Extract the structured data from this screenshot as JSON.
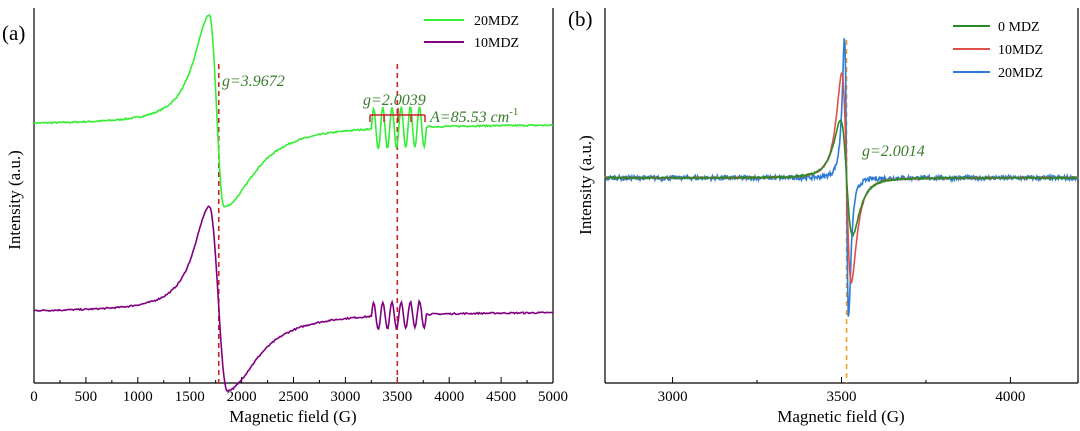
{
  "chart_data": [
    {
      "panel": "(a)",
      "type": "line",
      "xlabel": "Magnetic field (G)",
      "ylabel": "Intensity (a.u.)",
      "xlim": [
        0,
        5000
      ],
      "xticks": [
        "0",
        "500",
        "1000",
        "1500",
        "2000",
        "2500",
        "3000",
        "3500",
        "4000",
        "4500",
        "5000"
      ],
      "y_ticks_shown": false,
      "legend_position": "top-right",
      "annotations": {
        "g1": "g=3.9672",
        "g2": "g=2.0039",
        "hyperfine": "A=85.53 cm",
        "hyperfine_sup": "-1"
      },
      "reference_lines_x": [
        1780,
        3500
      ],
      "series": [
        {
          "name": "20MDZ",
          "color": "#33ee33",
          "baseline": 0.69,
          "main_peak_x": 1690,
          "main_peak_y": 0.98,
          "main_trough_x": 1830,
          "main_trough_y": 0.47,
          "hf_center": 3520,
          "hf_amp": 0.055
        },
        {
          "name": "10MDZ",
          "color": "#800080",
          "baseline": 0.19,
          "main_peak_x": 1690,
          "main_peak_y": 0.47,
          "main_trough_x": 1860,
          "main_trough_y": -0.02,
          "hf_center": 3520,
          "hf_amp": 0.035
        }
      ]
    },
    {
      "panel": "(b)",
      "type": "line",
      "xlabel": "Magnetic field (G)",
      "ylabel": "Intensity (a.u.)",
      "xlim": [
        2800,
        4200
      ],
      "xticks": [
        "3000",
        "3500",
        "4000"
      ],
      "y_ticks_shown": false,
      "legend_position": "top-right",
      "annotations": {
        "g": "g=2.0014"
      },
      "reference_lines_x": [
        3515
      ],
      "series": [
        {
          "name": "0 MDZ",
          "color": "#2a8a2a",
          "peak_y": 0.66,
          "trough_y": 0.32
        },
        {
          "name": "10MDZ",
          "color": "#e0504a",
          "peak_y": 0.84,
          "trough_y": 0.22
        },
        {
          "name": "20MDZ",
          "color": "#2f7bd6",
          "peak_y": 0.93,
          "trough_y": 0.1
        }
      ]
    }
  ]
}
